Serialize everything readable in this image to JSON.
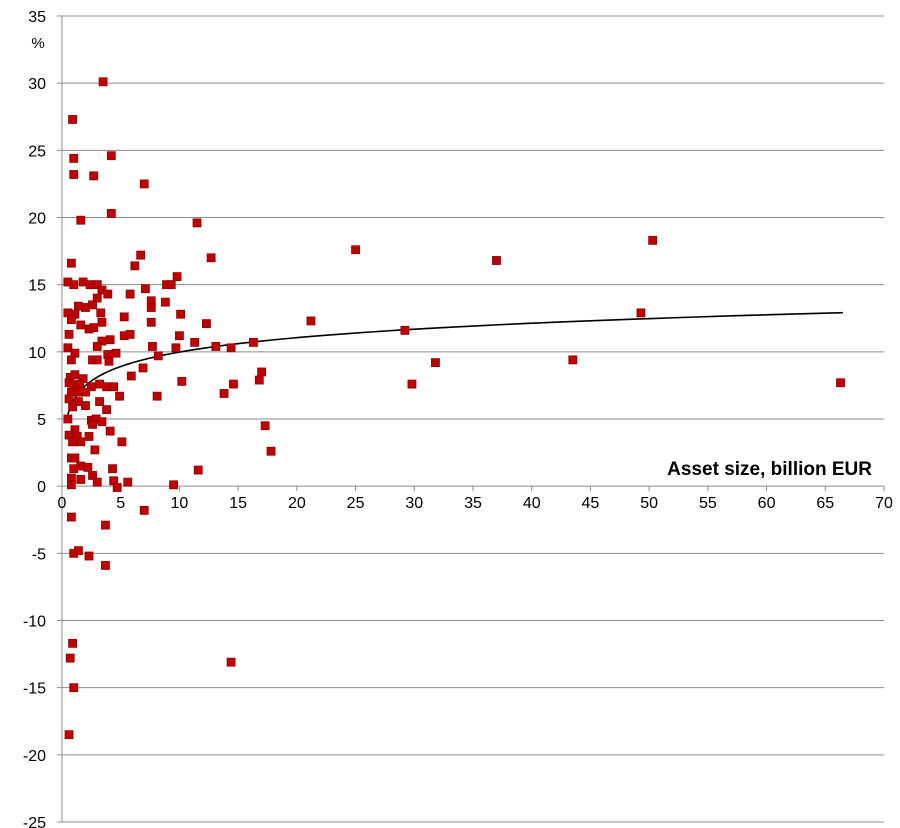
{
  "chart_data": {
    "type": "scatter",
    "title": "",
    "xlabel": "Asset size, billion EUR",
    "ylabel": "%",
    "xlim": [
      0,
      70
    ],
    "ylim": [
      -25,
      35
    ],
    "x_ticks": [
      0,
      5,
      10,
      15,
      20,
      25,
      30,
      35,
      40,
      45,
      50,
      55,
      60,
      65,
      70
    ],
    "y_ticks": [
      -25,
      -20,
      -15,
      -10,
      -5,
      0,
      5,
      10,
      15,
      20,
      25,
      30,
      35
    ],
    "grid": "horizontal",
    "legend": "none",
    "colors": {
      "marker": "#c00000",
      "marker_edge": "#8b0000",
      "trend": "#000000",
      "grid": "#8c8c8c"
    },
    "series": [
      {
        "marker": "square",
        "points": [
          [
            3.5,
            30.1
          ],
          [
            0.9,
            27.3
          ],
          [
            1.0,
            24.4
          ],
          [
            4.2,
            24.6
          ],
          [
            1.0,
            23.2
          ],
          [
            2.7,
            23.1
          ],
          [
            7.0,
            22.5
          ],
          [
            1.6,
            19.8
          ],
          [
            4.2,
            20.3
          ],
          [
            11.5,
            19.6
          ],
          [
            25.0,
            17.6
          ],
          [
            50.3,
            18.3
          ],
          [
            12.7,
            17.0
          ],
          [
            37.0,
            16.8
          ],
          [
            6.7,
            17.2
          ],
          [
            0.8,
            16.6
          ],
          [
            6.2,
            16.4
          ],
          [
            9.8,
            15.6
          ],
          [
            0.5,
            15.2
          ],
          [
            1.0,
            15.0
          ],
          [
            1.8,
            15.2
          ],
          [
            2.4,
            15.0
          ],
          [
            3.0,
            15.0
          ],
          [
            8.9,
            15.0
          ],
          [
            9.3,
            15.0
          ],
          [
            7.1,
            14.7
          ],
          [
            3.4,
            14.6
          ],
          [
            3.9,
            14.3
          ],
          [
            5.8,
            14.3
          ],
          [
            3.0,
            14.0
          ],
          [
            7.6,
            13.8
          ],
          [
            8.8,
            13.7
          ],
          [
            1.4,
            13.4
          ],
          [
            2.0,
            13.3
          ],
          [
            2.6,
            13.5
          ],
          [
            7.6,
            13.3
          ],
          [
            0.5,
            12.9
          ],
          [
            1.1,
            12.8
          ],
          [
            3.3,
            12.9
          ],
          [
            10.1,
            12.8
          ],
          [
            5.3,
            12.6
          ],
          [
            0.8,
            12.4
          ],
          [
            1.6,
            12.0
          ],
          [
            3.4,
            12.2
          ],
          [
            7.6,
            12.2
          ],
          [
            12.3,
            12.1
          ],
          [
            21.2,
            12.3
          ],
          [
            2.3,
            11.7
          ],
          [
            2.7,
            11.8
          ],
          [
            29.2,
            11.6
          ],
          [
            0.6,
            11.3
          ],
          [
            5.3,
            11.2
          ],
          [
            5.8,
            11.3
          ],
          [
            3.4,
            10.8
          ],
          [
            4.1,
            10.9
          ],
          [
            10.0,
            11.2
          ],
          [
            16.3,
            10.7
          ],
          [
            11.3,
            10.7
          ],
          [
            3.0,
            10.4
          ],
          [
            7.7,
            10.4
          ],
          [
            9.7,
            10.3
          ],
          [
            13.1,
            10.4
          ],
          [
            14.4,
            10.3
          ],
          [
            0.5,
            10.3
          ],
          [
            1.1,
            9.9
          ],
          [
            3.9,
            9.8
          ],
          [
            4.6,
            9.9
          ],
          [
            0.8,
            9.4
          ],
          [
            2.6,
            9.4
          ],
          [
            3.0,
            9.4
          ],
          [
            4.0,
            9.3
          ],
          [
            8.2,
            9.7
          ],
          [
            31.8,
            9.2
          ],
          [
            43.5,
            9.4
          ],
          [
            49.3,
            12.9
          ],
          [
            6.9,
            8.8
          ],
          [
            17.0,
            8.5
          ],
          [
            0.7,
            8.1
          ],
          [
            1.1,
            8.3
          ],
          [
            1.8,
            8.0
          ],
          [
            5.9,
            8.2
          ],
          [
            0.6,
            7.7
          ],
          [
            1.0,
            7.5
          ],
          [
            1.5,
            7.6
          ],
          [
            2.5,
            7.4
          ],
          [
            3.2,
            7.6
          ],
          [
            3.8,
            7.4
          ],
          [
            4.4,
            7.4
          ],
          [
            10.2,
            7.8
          ],
          [
            14.6,
            7.6
          ],
          [
            16.8,
            7.9
          ],
          [
            29.8,
            7.6
          ],
          [
            66.3,
            7.7
          ],
          [
            0.8,
            7.0
          ],
          [
            1.3,
            7.0
          ],
          [
            2.0,
            7.0
          ],
          [
            13.8,
            6.9
          ],
          [
            0.6,
            6.5
          ],
          [
            1.4,
            6.3
          ],
          [
            3.2,
            6.3
          ],
          [
            4.9,
            6.7
          ],
          [
            8.1,
            6.7
          ],
          [
            0.9,
            5.9
          ],
          [
            2.0,
            6.0
          ],
          [
            3.8,
            5.7
          ],
          [
            0.5,
            5.0
          ],
          [
            2.5,
            4.9
          ],
          [
            2.9,
            5.0
          ],
          [
            17.3,
            4.5
          ],
          [
            2.6,
            4.6
          ],
          [
            3.4,
            4.8
          ],
          [
            1.1,
            4.2
          ],
          [
            4.1,
            4.1
          ],
          [
            0.6,
            3.8
          ],
          [
            1.3,
            3.7
          ],
          [
            2.3,
            3.7
          ],
          [
            0.9,
            3.3
          ],
          [
            1.6,
            3.3
          ],
          [
            5.1,
            3.3
          ],
          [
            2.8,
            2.7
          ],
          [
            17.8,
            2.6
          ],
          [
            0.8,
            2.1
          ],
          [
            1.1,
            2.1
          ],
          [
            1.6,
            1.5
          ],
          [
            1.0,
            1.3
          ],
          [
            2.2,
            1.4
          ],
          [
            4.3,
            1.3
          ],
          [
            11.6,
            1.2
          ],
          [
            0.8,
            0.6
          ],
          [
            2.6,
            0.8
          ],
          [
            1.6,
            0.5
          ],
          [
            3.0,
            0.3
          ],
          [
            4.4,
            0.4
          ],
          [
            5.6,
            0.3
          ],
          [
            0.8,
            0.1
          ],
          [
            4.7,
            -0.1
          ],
          [
            9.5,
            0.1
          ],
          [
            0.8,
            -2.3
          ],
          [
            7.0,
            -1.8
          ],
          [
            3.7,
            -2.9
          ],
          [
            1.0,
            -5.0
          ],
          [
            1.4,
            -4.8
          ],
          [
            2.3,
            -5.2
          ],
          [
            3.7,
            -5.9
          ],
          [
            0.9,
            -11.7
          ],
          [
            0.7,
            -12.8
          ],
          [
            14.4,
            -13.1
          ],
          [
            1.0,
            -15.0
          ],
          [
            0.6,
            -18.5
          ]
        ]
      }
    ],
    "trendline": {
      "type": "logarithmic",
      "x": [
        0.5,
        1,
        2,
        3,
        5,
        8,
        10,
        15,
        20,
        30,
        40,
        50,
        60,
        66.5
      ],
      "y": [
        5.4,
        6.45,
        7.5,
        8.1,
        8.9,
        9.6,
        9.95,
        10.55,
        11.0,
        11.6,
        12.05,
        12.4,
        12.7,
        13.3
      ]
    }
  }
}
